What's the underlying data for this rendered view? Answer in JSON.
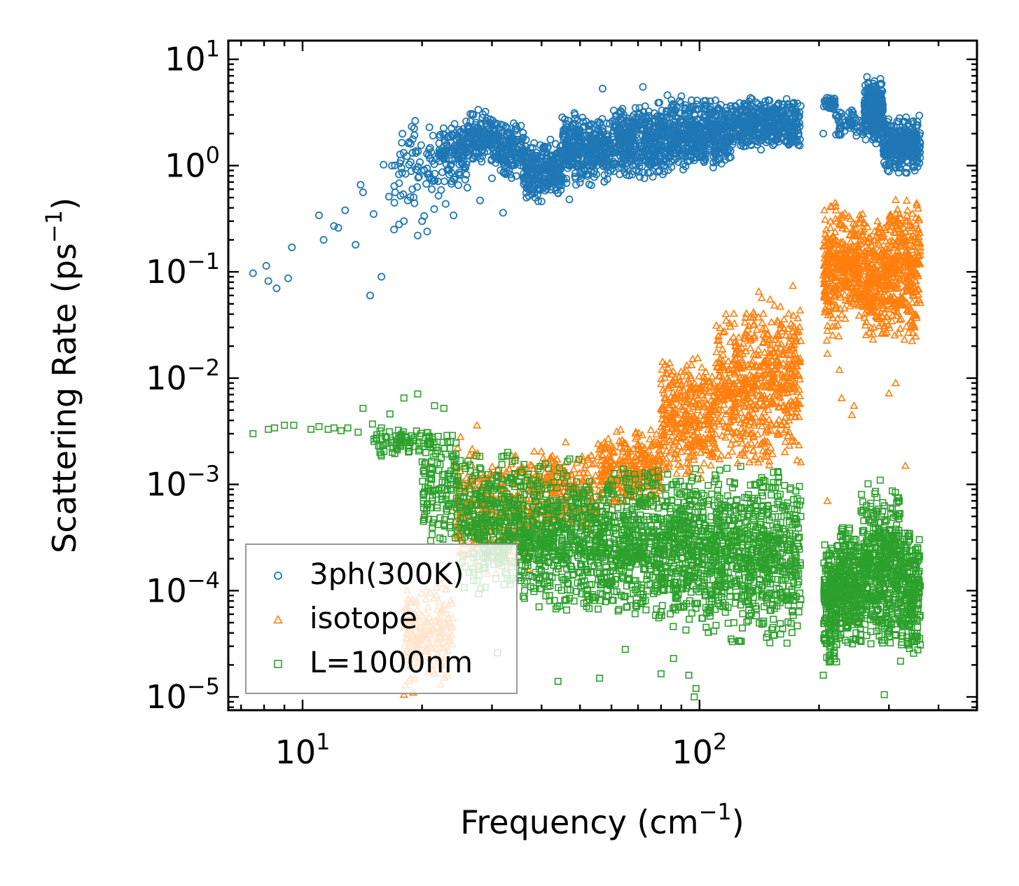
{
  "chart_data": {
    "type": "scatter",
    "xscale": "log",
    "yscale": "log",
    "xlim": [
      6.5,
      500
    ],
    "ylim": [
      7.5e-06,
      15
    ],
    "xlabel": {
      "base": "Frequency (cm",
      "sup": "−1",
      "end": ")"
    },
    "ylabel": {
      "base": "Scattering Rate (ps",
      "sup": "−1",
      "end": ")"
    },
    "xticks": [
      {
        "value": 10,
        "base": "10",
        "exp": "1"
      },
      {
        "value": 100,
        "base": "10",
        "exp": "2"
      }
    ],
    "yticks": [
      {
        "value": 10,
        "base": "10",
        "exp": "1"
      },
      {
        "value": 1,
        "base": "10",
        "exp": "0"
      },
      {
        "value": 0.1,
        "base": "10",
        "exp": "−1"
      },
      {
        "value": 0.01,
        "base": "10",
        "exp": "−2"
      },
      {
        "value": 0.001,
        "base": "10",
        "exp": "−3"
      },
      {
        "value": 0.0001,
        "base": "10",
        "exp": "−4"
      },
      {
        "value": 1e-05,
        "base": "10",
        "exp": "−5"
      }
    ],
    "legend_position": "lower-left",
    "series": [
      {
        "name": "3ph(300K)",
        "marker": "circle",
        "color": "#1f77b4",
        "points": [
          [
            7.5,
            0.097
          ],
          [
            8.1,
            0.114
          ],
          [
            8.2,
            0.082
          ],
          [
            8.6,
            0.07
          ],
          [
            9.2,
            0.087
          ],
          [
            9.4,
            0.17
          ],
          [
            11,
            0.34
          ],
          [
            11.3,
            0.2
          ],
          [
            12,
            0.27
          ],
          [
            12.3,
            0.26
          ],
          [
            12.8,
            0.38
          ],
          [
            13.6,
            0.18
          ],
          [
            14,
            0.66
          ],
          [
            14.2,
            0.56
          ],
          [
            14.8,
            0.06
          ],
          [
            15.1,
            0.35
          ],
          [
            15.8,
            0.09
          ],
          [
            16,
            1.02
          ],
          [
            16.5,
            0.51
          ],
          [
            16.8,
            1.0
          ],
          [
            17,
            0.25
          ],
          [
            17.5,
            0.28
          ],
          [
            18,
            0.3
          ],
          [
            18.4,
            0.47
          ],
          [
            19.5,
            0.22
          ],
          [
            20,
            0.3
          ],
          [
            20.6,
            0.24
          ],
          [
            22,
            0.52
          ],
          [
            24,
            0.34
          ],
          [
            26,
            0.62
          ],
          [
            28,
            0.47
          ],
          [
            30,
            0.76
          ],
          [
            32,
            0.36
          ],
          [
            40,
            0.46
          ],
          [
            47,
            0.48
          ],
          [
            57,
            5.3
          ],
          [
            72,
            5.5
          ],
          [
            83,
            4.6
          ],
          [
            90,
            4.5
          ],
          [
            205,
            2.0
          ],
          [
            300,
            0.88
          ],
          [
            330,
            0.86
          ]
        ],
        "bands": [
          {
            "x0": 17,
            "x1": 23,
            "lo": 0.3,
            "hi": 2.8,
            "n": 80
          },
          {
            "x0": 22,
            "x1": 26,
            "lo": 0.6,
            "hi": 3.0,
            "n": 120
          },
          {
            "x0": 26,
            "x1": 31,
            "lo": 1.0,
            "hi": 3.4,
            "n": 160
          },
          {
            "x0": 31,
            "x1": 36,
            "lo": 0.7,
            "hi": 2.8,
            "n": 140
          },
          {
            "x0": 36,
            "x1": 45,
            "lo": 0.45,
            "hi": 1.8,
            "n": 260
          },
          {
            "x0": 45,
            "x1": 60,
            "lo": 0.65,
            "hi": 3.2,
            "n": 380
          },
          {
            "x0": 60,
            "x1": 85,
            "lo": 0.7,
            "hi": 4.0,
            "n": 460
          },
          {
            "x0": 85,
            "x1": 120,
            "lo": 0.9,
            "hi": 4.5,
            "n": 460
          },
          {
            "x0": 120,
            "x1": 180,
            "lo": 1.4,
            "hi": 4.5,
            "n": 420
          },
          {
            "x0": 205,
            "x1": 220,
            "lo": 3.3,
            "hi": 4.5,
            "n": 40
          },
          {
            "x0": 220,
            "x1": 262,
            "lo": 1.8,
            "hi": 3.5,
            "n": 60
          },
          {
            "x0": 260,
            "x1": 290,
            "lo": 1.5,
            "hi": 7.0,
            "n": 260
          },
          {
            "x0": 290,
            "x1": 360,
            "lo": 0.85,
            "hi": 3.0,
            "n": 320
          }
        ]
      },
      {
        "name": "isotope",
        "marker": "triangle",
        "color": "#ff7f0e",
        "points": [
          [
            18,
            1.05e-05
          ],
          [
            19,
            1.1e-05
          ],
          [
            25,
            0.0028
          ],
          [
            27.5,
            0.0036
          ],
          [
            46,
            0.0025
          ],
          [
            88,
            0.0045
          ],
          [
            103,
            0.0055
          ],
          [
            130,
            0.01
          ],
          [
            210,
            0.017
          ],
          [
            210,
            0.0007
          ],
          [
            225,
            0.012
          ],
          [
            228,
            0.0065
          ],
          [
            242,
            0.0045
          ],
          [
            245,
            0.0055
          ],
          [
            275,
            0.03
          ],
          [
            300,
            0.0072
          ],
          [
            312,
            0.009
          ],
          [
            330,
            0.0015
          ]
        ],
        "bands": [
          {
            "x0": 18,
            "x1": 24,
            "lo": 1.2e-05,
            "hi": 0.00012,
            "n": 200
          },
          {
            "x0": 24,
            "x1": 30,
            "lo": 0.00012,
            "hi": 0.0028,
            "n": 160
          },
          {
            "x0": 30,
            "x1": 38,
            "lo": 0.00013,
            "hi": 0.0023,
            "n": 140
          },
          {
            "x0": 38,
            "x1": 55,
            "lo": 0.00033,
            "hi": 0.0022,
            "n": 240
          },
          {
            "x0": 55,
            "x1": 80,
            "lo": 0.0006,
            "hi": 0.0035,
            "n": 300
          },
          {
            "x0": 80,
            "x1": 110,
            "lo": 0.0011,
            "hi": 0.018,
            "n": 340
          },
          {
            "x0": 110,
            "x1": 140,
            "lo": 0.0012,
            "hi": 0.05,
            "n": 320
          },
          {
            "x0": 140,
            "x1": 180,
            "lo": 0.0013,
            "hi": 0.09,
            "n": 320
          },
          {
            "x0": 205,
            "x1": 225,
            "lo": 0.02,
            "hi": 0.55,
            "n": 160
          },
          {
            "x0": 225,
            "x1": 260,
            "lo": 0.03,
            "hi": 0.4,
            "n": 240
          },
          {
            "x0": 260,
            "x1": 300,
            "lo": 0.02,
            "hi": 0.35,
            "n": 260
          },
          {
            "x0": 300,
            "x1": 360,
            "lo": 0.02,
            "hi": 0.6,
            "n": 320
          }
        ]
      },
      {
        "name": "L=1000nm",
        "marker": "square",
        "color": "#2ca02c",
        "points": [
          [
            7.5,
            0.003
          ],
          [
            8.2,
            0.0033
          ],
          [
            8.5,
            0.0034
          ],
          [
            9,
            0.0036
          ],
          [
            9.5,
            0.0036
          ],
          [
            10.5,
            0.0033
          ],
          [
            11,
            0.0035
          ],
          [
            11.6,
            0.0033
          ],
          [
            12,
            0.0034
          ],
          [
            12.5,
            0.0032
          ],
          [
            13,
            0.0034
          ],
          [
            13.8,
            0.0031
          ],
          [
            14.2,
            0.0052
          ],
          [
            15,
            0.0037
          ],
          [
            15.8,
            0.0034
          ],
          [
            16.6,
            0.0046
          ],
          [
            18,
            0.0065
          ],
          [
            19.5,
            0.0071
          ],
          [
            21.5,
            0.0055
          ],
          [
            22.7,
            0.0052
          ],
          [
            31,
            2.6e-05
          ],
          [
            44,
            1.4e-05
          ],
          [
            56,
            1.5e-05
          ],
          [
            65,
            2.8e-05
          ],
          [
            80,
            1.65e-05
          ],
          [
            86,
            2.3e-05
          ],
          [
            94,
            1.6e-05
          ],
          [
            98,
            1.2e-05
          ],
          [
            97,
            1e-05
          ],
          [
            292,
            1.05e-05
          ],
          [
            205,
            1.6e-05
          ]
        ],
        "bands": [
          {
            "x0": 15,
            "x1": 22,
            "lo": 0.0018,
            "hi": 0.0035,
            "n": 90
          },
          {
            "x0": 20,
            "x1": 25,
            "lo": 0.00025,
            "hi": 0.0032,
            "n": 140
          },
          {
            "x0": 25,
            "x1": 35,
            "lo": 9e-05,
            "hi": 0.0023,
            "n": 320
          },
          {
            "x0": 35,
            "x1": 50,
            "lo": 6e-05,
            "hi": 0.0018,
            "n": 420
          },
          {
            "x0": 50,
            "x1": 80,
            "lo": 5e-05,
            "hi": 0.0015,
            "n": 560
          },
          {
            "x0": 80,
            "x1": 120,
            "lo": 4e-05,
            "hi": 0.0015,
            "n": 560
          },
          {
            "x0": 120,
            "x1": 180,
            "lo": 3e-05,
            "hi": 0.0018,
            "n": 520
          },
          {
            "x0": 205,
            "x1": 222,
            "lo": 2e-05,
            "hi": 0.0003,
            "n": 200
          },
          {
            "x0": 222,
            "x1": 255,
            "lo": 3e-05,
            "hi": 0.00045,
            "n": 280
          },
          {
            "x0": 255,
            "x1": 320,
            "lo": 2.5e-05,
            "hi": 0.0011,
            "n": 460
          },
          {
            "x0": 320,
            "x1": 360,
            "lo": 2e-05,
            "hi": 0.0004,
            "n": 220
          }
        ]
      }
    ]
  }
}
